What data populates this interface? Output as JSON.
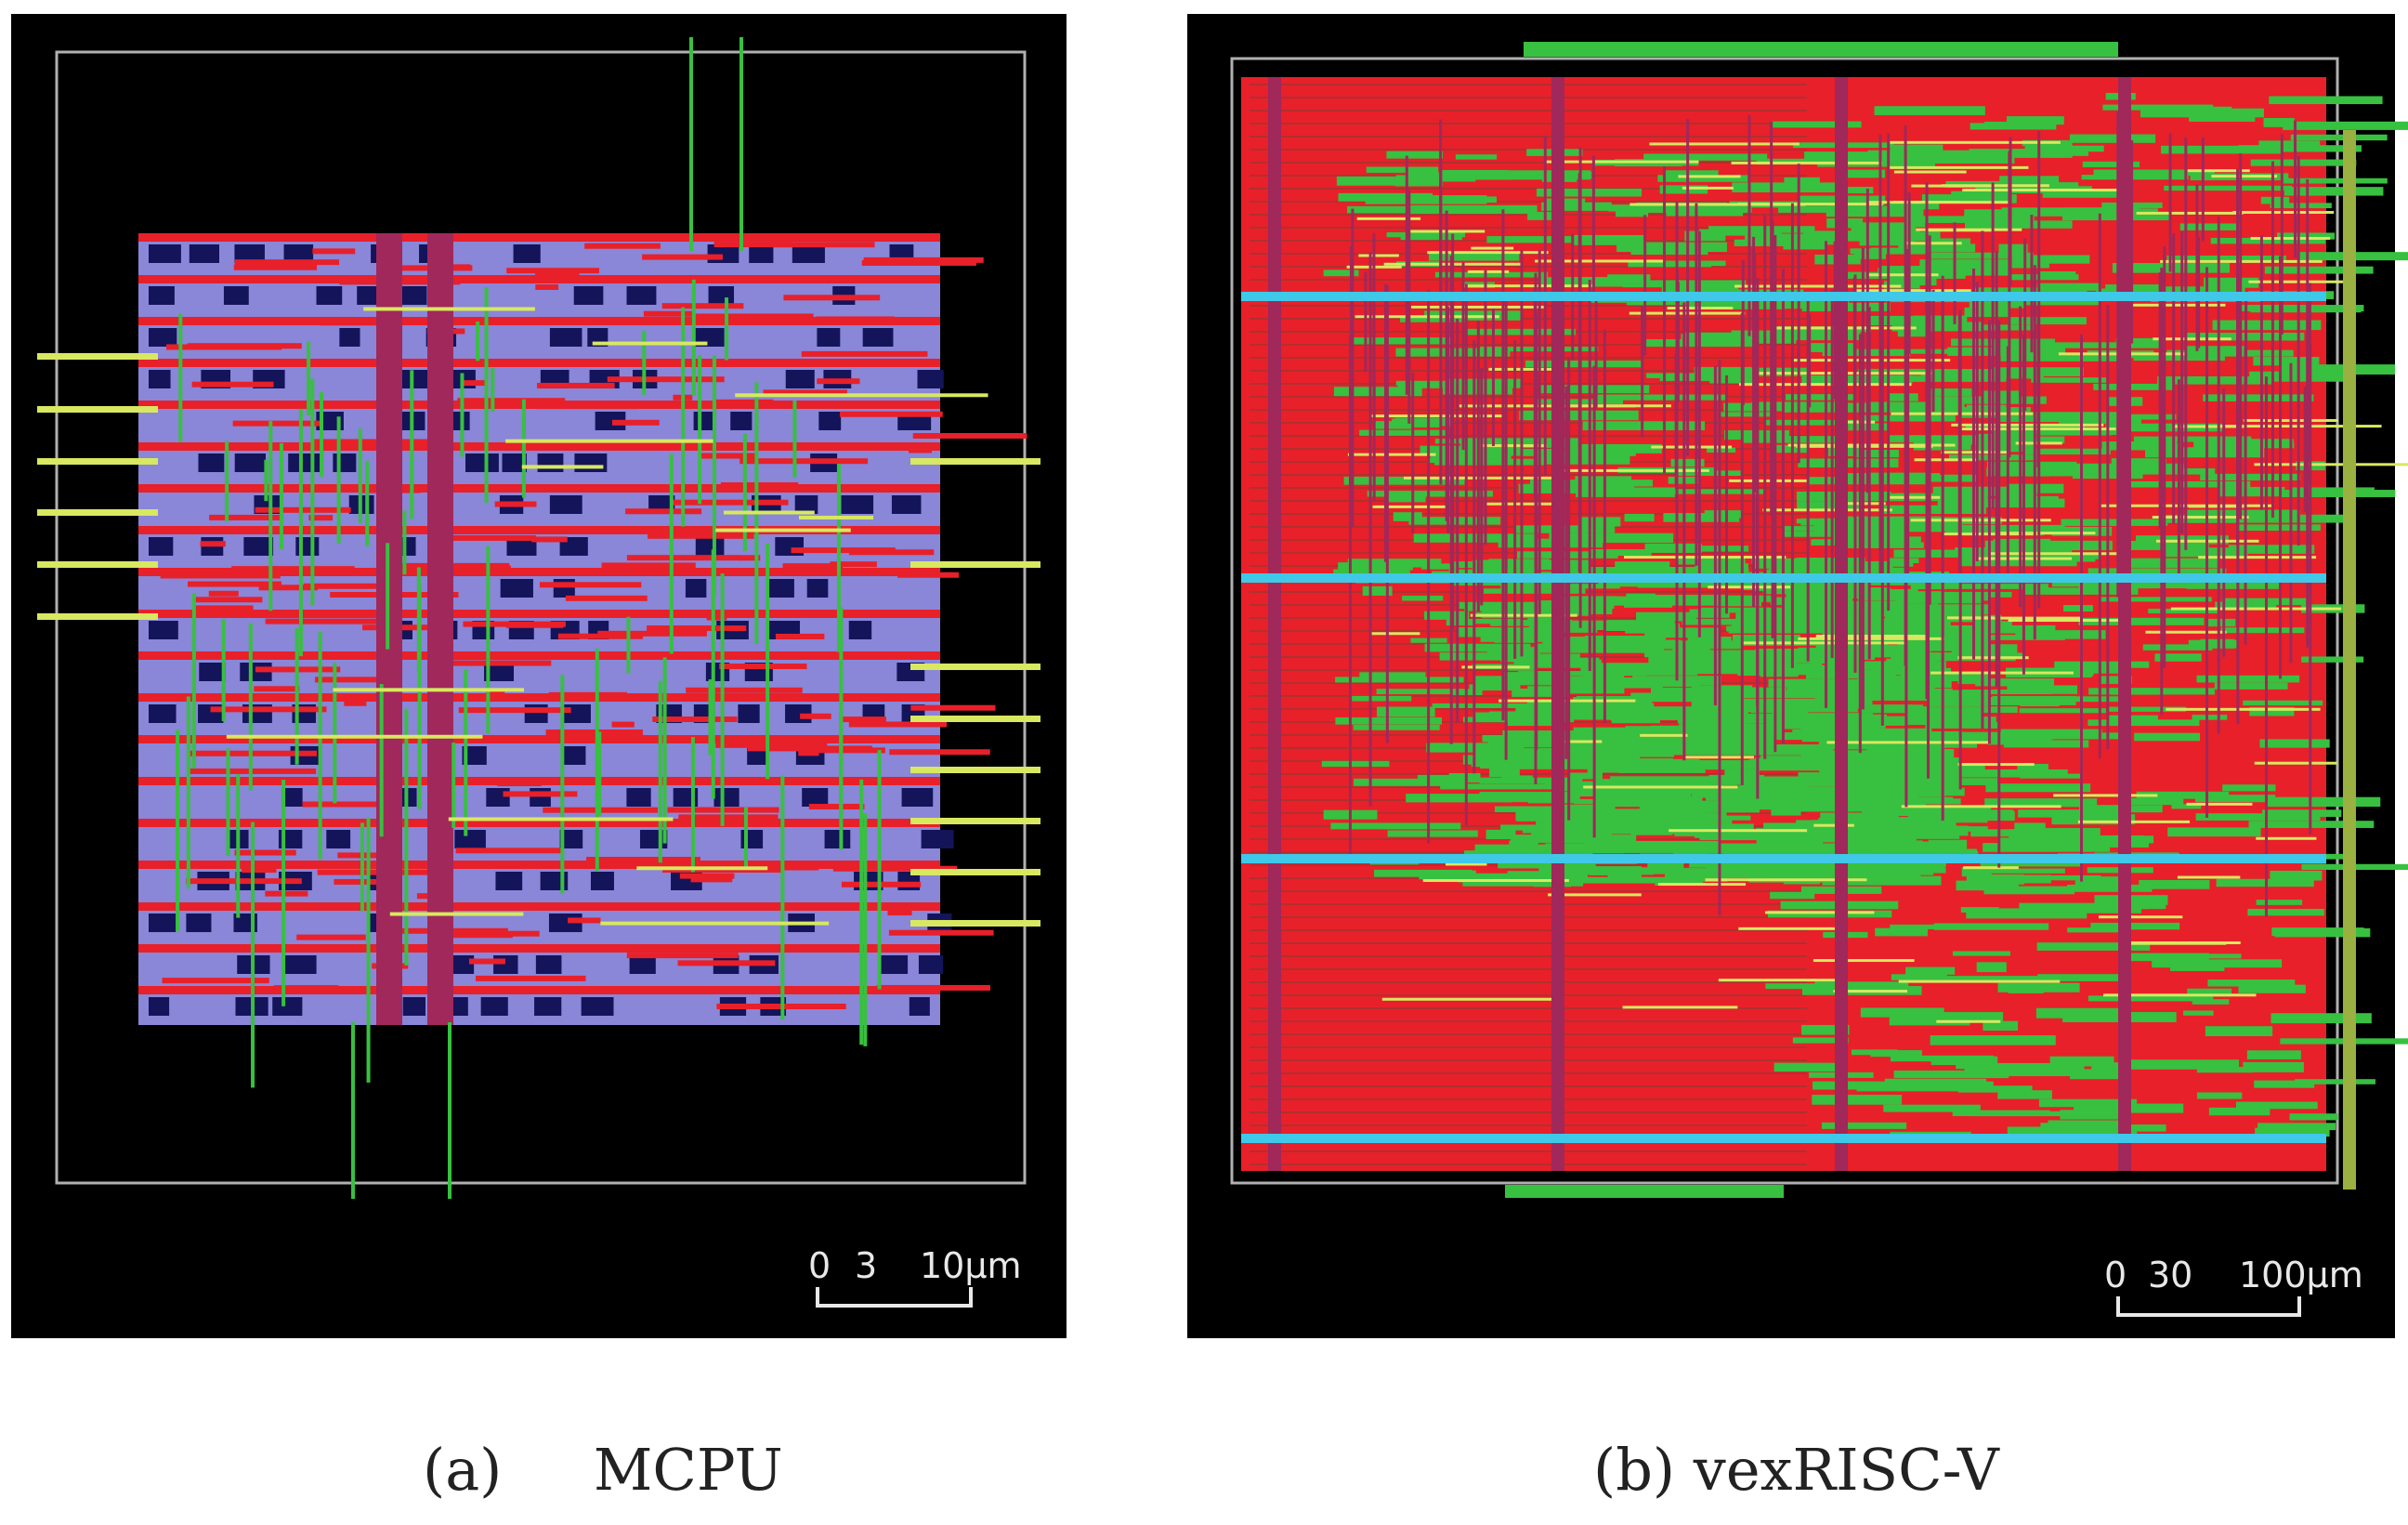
{
  "figure": {
    "panels": [
      {
        "id": "a",
        "caption_label": "(a)",
        "caption_title": "MCPU",
        "scale_bar": {
          "ticks": [
            "0",
            "3",
            "10µm"
          ]
        }
      },
      {
        "id": "b",
        "caption_label": "(b)",
        "caption_title": "vexRISC-V",
        "scale_bar": {
          "ticks": [
            "0",
            "30",
            "100µm"
          ]
        }
      }
    ],
    "colors": {
      "background": "#000000",
      "metal_red": "#e8202a",
      "metal_maroon": "#a0285a",
      "routing_green": "#38c040",
      "highlight_yellow": "#d8e860",
      "cell_purple": "#8a86d8",
      "cell_darkblue": "#14145a",
      "power_cyan": "#40c8e8",
      "frame": "#b0b0b0"
    }
  }
}
